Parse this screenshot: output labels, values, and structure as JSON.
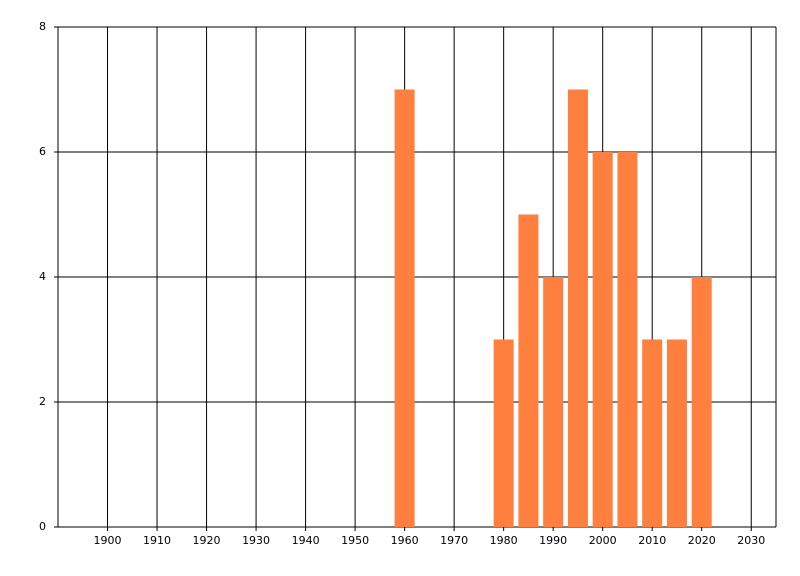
{
  "chart_data": {
    "type": "bar",
    "x": [
      1960,
      1980,
      1985,
      1990,
      1995,
      2000,
      2005,
      2010,
      2015,
      2020
    ],
    "values": [
      7,
      3,
      5,
      4,
      7,
      6,
      6,
      3,
      3,
      4
    ],
    "color": "#ff7f3f",
    "xlim": [
      1890,
      2035
    ],
    "xticks": [
      1900,
      1910,
      1920,
      1930,
      1940,
      1950,
      1960,
      1970,
      1980,
      1990,
      2000,
      2010,
      2020,
      2030
    ],
    "ylim": [
      0,
      8
    ],
    "yticks": [
      0,
      2,
      4,
      6,
      8
    ],
    "grid": true
  }
}
